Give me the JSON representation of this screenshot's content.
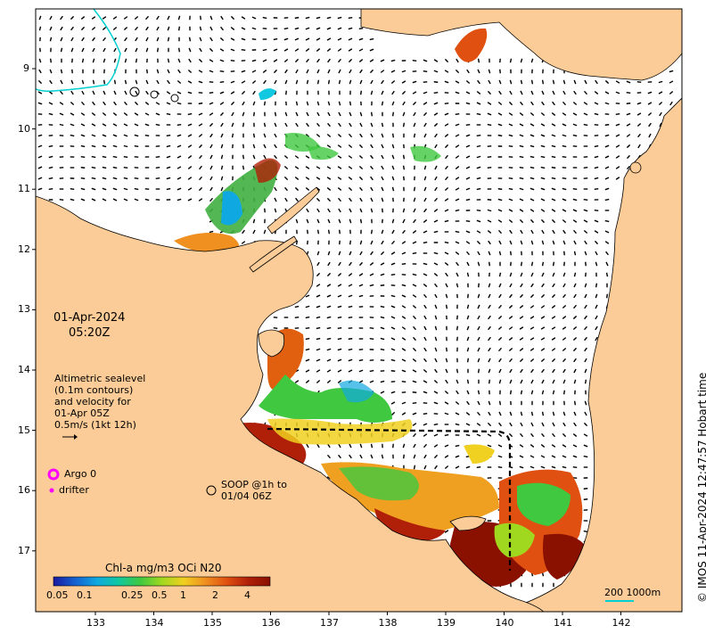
{
  "map": {
    "date": "01-Apr-2024",
    "time": "05:20Z",
    "x_ticks": [
      "133",
      "134",
      "135",
      "136",
      "137",
      "138",
      "139",
      "140",
      "141",
      "142"
    ],
    "y_ticks": [
      "9",
      "10",
      "11",
      "12",
      "13",
      "14",
      "15",
      "16",
      "17"
    ],
    "legend_text": {
      "line1": "Altimetric sealevel",
      "line2": "(0.1m contours)",
      "line3": "and velocity for",
      "line4": "01-Apr 05Z",
      "line5": "0.5m/s (1kt 12h)"
    },
    "argo_label": "Argo 0",
    "drifter_label": "drifter",
    "soop_line1": "SOOP @1h to",
    "soop_line2": "01/04 06Z",
    "colorbar_title": "Chl-a mg/m3 OCi N20",
    "colorbar_ticks": [
      "0.05",
      "0.1",
      "0.25",
      "0.5",
      "1",
      "2",
      "4"
    ],
    "colorbar_colors": [
      "#1a1aa0",
      "#1560d0",
      "#10a8e0",
      "#10c8a0",
      "#40c840",
      "#a0d820",
      "#f0d020",
      "#f09020",
      "#e05010",
      "#b02008",
      "#8a1000"
    ],
    "scale_label": "200  1000m",
    "credit": "© IMOS 11-Apr-2024 12:47:57 Hobart time",
    "colors": {
      "land": "#fbcc97",
      "ocean": "#ffffff",
      "bathy_contour": "#00d0d0",
      "argo": "#ff00ff"
    }
  }
}
